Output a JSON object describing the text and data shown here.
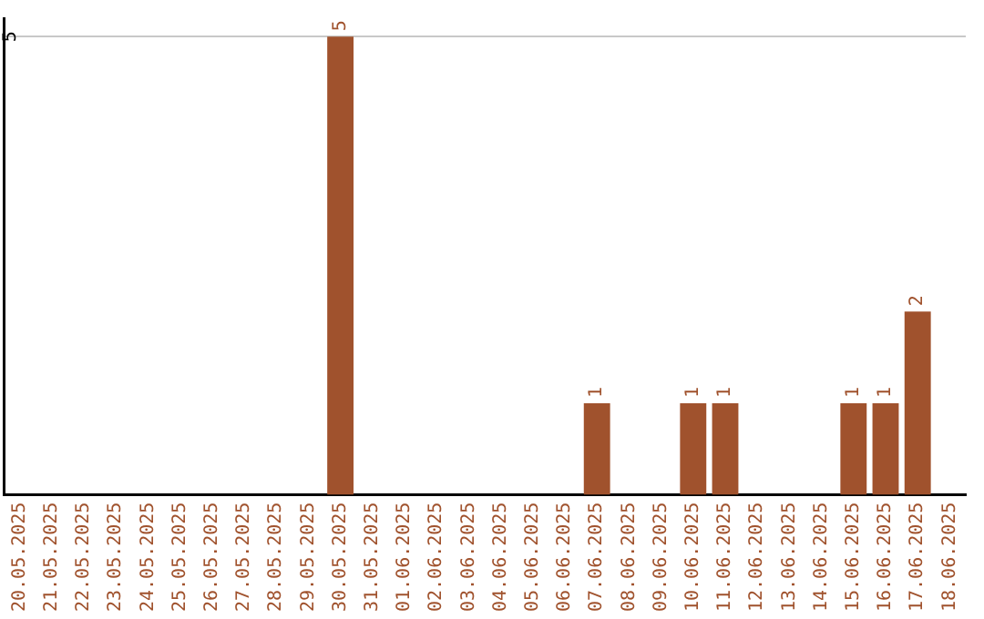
{
  "chart_data": {
    "type": "bar",
    "categories": [
      "20.05.2025",
      "21.05.2025",
      "22.05.2025",
      "23.05.2025",
      "24.05.2025",
      "25.05.2025",
      "26.05.2025",
      "27.05.2025",
      "28.05.2025",
      "29.05.2025",
      "30.05.2025",
      "31.05.2025",
      "01.06.2025",
      "02.06.2025",
      "03.06.2025",
      "04.06.2025",
      "05.06.2025",
      "06.06.2025",
      "07.06.2025",
      "08.06.2025",
      "09.06.2025",
      "10.06.2025",
      "11.06.2025",
      "12.06.2025",
      "13.06.2025",
      "14.06.2025",
      "15.06.2025",
      "16.06.2025",
      "17.06.2025",
      "18.06.2025"
    ],
    "values": [
      0,
      0,
      0,
      0,
      0,
      0,
      0,
      0,
      0,
      0,
      5,
      0,
      0,
      0,
      0,
      0,
      0,
      0,
      1,
      0,
      0,
      1,
      1,
      0,
      0,
      0,
      1,
      1,
      2,
      0
    ],
    "value_labels": [
      null,
      null,
      null,
      null,
      null,
      null,
      null,
      null,
      null,
      null,
      "5",
      null,
      null,
      null,
      null,
      null,
      null,
      null,
      "1",
      null,
      null,
      "1",
      "1",
      null,
      null,
      null,
      "1",
      "1",
      "2",
      null
    ],
    "color": "#a0522d",
    "ylim": [
      0,
      5.2
    ],
    "yticks": [
      5
    ],
    "grid": "y",
    "legend": false
  }
}
